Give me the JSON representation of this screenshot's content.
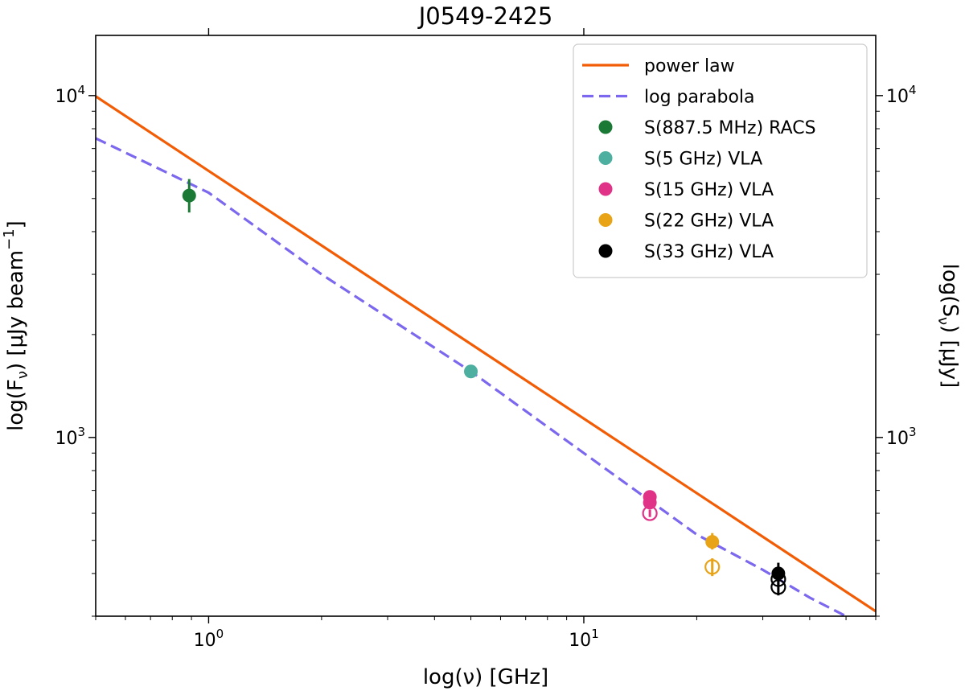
{
  "chart_data": {
    "type": "scatter",
    "title": "J0549-2425",
    "xlabel": "log(ν) [GHz]",
    "ylabel_left": {
      "pre": "log(F",
      "sub": "ν",
      "post": ") [μJy beam",
      "sup": "−1",
      "end": "]"
    },
    "ylabel_right": {
      "pre": "log(S",
      "sub": "ν",
      "post": ") [μJy]"
    },
    "xscale": "log",
    "yscale": "log",
    "xlim": [
      0.5,
      60
    ],
    "ylim": [
      300,
      15000
    ],
    "x_major_ticks": [
      {
        "value": 1,
        "label": "10",
        "exp": "0"
      },
      {
        "value": 10,
        "label": "10",
        "exp": "1"
      }
    ],
    "y_major_ticks": [
      {
        "value": 1000,
        "label": "10",
        "exp": "3"
      },
      {
        "value": 10000,
        "label": "10",
        "exp": "4"
      }
    ],
    "legend_position": "top-right",
    "models": [
      {
        "name": "power law",
        "style": "solid",
        "color": "#f25c05",
        "x": [
          0.5,
          60
        ],
        "y": [
          9950,
          310
        ]
      },
      {
        "name": "log parabola",
        "style": "dashed",
        "color": "#7b68ee",
        "x": [
          0.5,
          1,
          2,
          5,
          10,
          20,
          30,
          40,
          50
        ],
        "y": [
          7500,
          5200,
          3000,
          1560,
          900,
          520,
          410,
          340,
          300
        ]
      }
    ],
    "series": [
      {
        "name": "S(887.5 MHz) RACS",
        "color": "#1a7a35",
        "points": [
          {
            "x": 0.8875,
            "y": 5100,
            "yerr_low": 550,
            "yerr_high": 600,
            "filled": true
          }
        ]
      },
      {
        "name": "S(5 GHz) VLA",
        "color": "#4caf9f",
        "points": [
          {
            "x": 5,
            "y": 1560,
            "yerr_low": 15,
            "yerr_high": 15,
            "filled": true
          }
        ]
      },
      {
        "name": "S(15 GHz) VLA",
        "color": "#e03388",
        "points": [
          {
            "x": 15,
            "y": 670,
            "yerr_low": 15,
            "yerr_high": 15,
            "filled": true
          },
          {
            "x": 15,
            "y": 645,
            "yerr_low": 15,
            "yerr_high": 15,
            "filled": true
          },
          {
            "x": 15,
            "y": 600,
            "yerr_low": 15,
            "yerr_high": 15,
            "filled": false
          }
        ]
      },
      {
        "name": "S(22 GHz) VLA",
        "color": "#e8a317",
        "points": [
          {
            "x": 22,
            "y": 495,
            "yerr_low": 25,
            "yerr_high": 30,
            "filled": true
          },
          {
            "x": 22,
            "y": 418,
            "yerr_low": 25,
            "yerr_high": 25,
            "filled": false
          }
        ]
      },
      {
        "name": "S(33 GHz) VLA",
        "color": "#000000",
        "points": [
          {
            "x": 33,
            "y": 400,
            "yerr_low": 20,
            "yerr_high": 30,
            "filled": true
          },
          {
            "x": 33,
            "y": 385,
            "yerr_low": 20,
            "yerr_high": 20,
            "filled": false
          },
          {
            "x": 33,
            "y": 365,
            "yerr_low": 20,
            "yerr_high": 20,
            "filled": false
          }
        ]
      }
    ]
  }
}
